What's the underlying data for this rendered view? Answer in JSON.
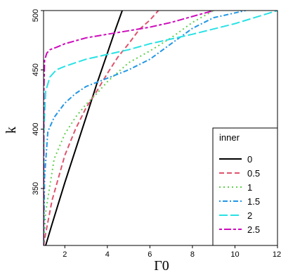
{
  "chart_data": {
    "type": "line",
    "xlabel": "Γ0",
    "ylabel": "k",
    "xlim": [
      1,
      12
    ],
    "ylim": [
      302,
      500
    ],
    "x_ticks": [
      2,
      4,
      6,
      8,
      10,
      12
    ],
    "y_ticks": [
      350,
      400,
      450,
      500
    ],
    "grid": false,
    "legend": {
      "title": "inner",
      "placement": "bottom-right"
    },
    "series": [
      {
        "name": "0",
        "color": "#000000",
        "dash": "solid",
        "x": [
          1.1,
          1.4,
          2.0,
          2.6,
          3.0,
          3.5,
          4.0,
          4.4,
          4.7
        ],
        "y": [
          302,
          320,
          355,
          388,
          410,
          438,
          464,
          485,
          500
        ]
      },
      {
        "name": "0.5",
        "color": "#DF536B",
        "dash": "dashed",
        "x": [
          1.0,
          1.1,
          1.4,
          2.0,
          2.5,
          3.0,
          3.5,
          4.0,
          4.5,
          5.0,
          5.5,
          6.0,
          6.4
        ],
        "y": [
          302,
          312,
          340,
          378,
          400,
          418,
          432,
          447,
          461,
          472,
          484,
          492,
          500
        ]
      },
      {
        "name": "1",
        "color": "#61D04F",
        "dash": "dotted",
        "x": [
          1.0,
          1.1,
          1.5,
          2.0,
          2.5,
          3.0,
          3.5,
          4.0,
          5.0,
          6.0,
          7.0,
          8.0,
          9.0
        ],
        "y": [
          302,
          330,
          375,
          396,
          410,
          421,
          430,
          440,
          456,
          466,
          477,
          490,
          500
        ]
      },
      {
        "name": "1.5",
        "color": "#2297E6",
        "dash": "dashdot",
        "x": [
          1.0,
          1.05,
          1.2,
          1.5,
          2.0,
          2.5,
          3.0,
          4.0,
          5.0,
          6.0,
          7.0,
          8.0,
          9.0,
          10.5
        ],
        "y": [
          302,
          360,
          398,
          410,
          422,
          430,
          436,
          443,
          450,
          459,
          472,
          485,
          494,
          500
        ]
      },
      {
        "name": "2",
        "color": "#28E2E5",
        "dash": "longdash",
        "x": [
          1.0,
          1.02,
          1.1,
          1.3,
          1.6,
          2.0,
          2.5,
          3.0,
          4.0,
          5.0,
          6.0,
          8.0,
          10.0,
          12.0
        ],
        "y": [
          302,
          400,
          432,
          444,
          450,
          453,
          456,
          459,
          463,
          467,
          472,
          480,
          489,
          500
        ]
      },
      {
        "name": "2.5",
        "color": "#CD0BBC",
        "dash": "twodash",
        "x": [
          1.0,
          1.01,
          1.05,
          1.15,
          1.3,
          1.6,
          2.0,
          3.0,
          4.0,
          5.0,
          6.0,
          7.0,
          8.0,
          9.0
        ],
        "y": [
          302,
          430,
          458,
          464,
          467,
          469,
          472,
          477,
          480,
          483,
          486,
          490,
          495,
          500
        ]
      }
    ]
  }
}
